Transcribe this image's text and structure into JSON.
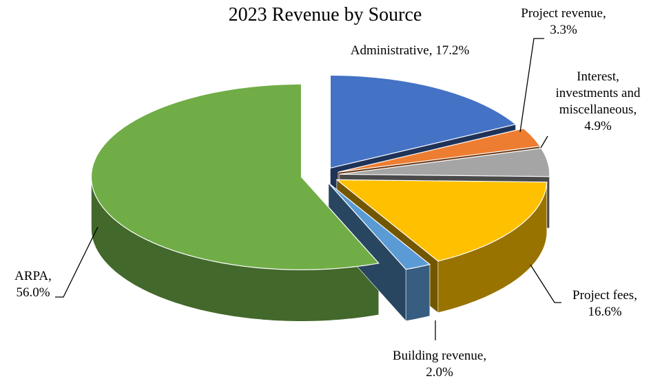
{
  "chart_data": {
    "type": "pie",
    "title": "2023 Revenue by Source",
    "categories": [
      "Administrative",
      "Project revenue",
      "Interest, investments and miscellaneous",
      "Project fees",
      "Building revenue",
      "ARPA"
    ],
    "values": [
      17.2,
      3.3,
      4.9,
      16.6,
      2.0,
      56.0
    ],
    "value_labels": [
      "17.2%",
      "3.3%",
      "4.9%",
      "16.6%",
      "2.0%",
      "56.0%"
    ],
    "label_separator": ",",
    "colors": [
      "#4472c4",
      "#ed7d31",
      "#a5a5a5",
      "#ffc000",
      "#5b9bd5",
      "#70ad47"
    ]
  }
}
